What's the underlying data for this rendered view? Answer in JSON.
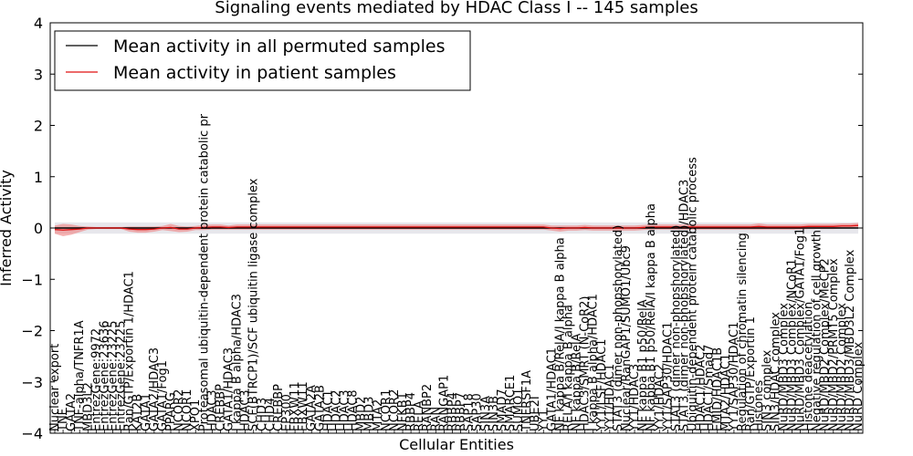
{
  "chart_data": {
    "type": "line",
    "title": "Signaling events mediated by HDAC Class I -- 145 samples",
    "xlabel": "Cellular Entities",
    "ylabel": "Inferred Activity",
    "ylim": [
      -4,
      4
    ],
    "yticks": [
      -4,
      -3,
      -2,
      -1,
      0,
      1,
      2,
      3,
      4
    ],
    "grid": false,
    "legend_position": "top-left",
    "colors": {
      "permuted": "#000000",
      "patient": "#e01010",
      "band": "#f08080",
      "band_grey": "#b9b9c8"
    },
    "categories": [
      "Nuclear export",
      "TNF",
      "GATA2",
      "TNF-alpha/TNFR1A",
      "MBD3L2",
      "EntrezGene:9972",
      "EntrezGene:23636",
      "EntrezGene:23225",
      "EntrezGene:23225",
      "Ran/GTP/Exportin 1/HDAC1",
      "KAT2B",
      "GATA1",
      "GATA2/HDAC3",
      "GATA1/Fog1",
      "PPARG",
      "NCOR2",
      "NCOR1",
      "XPO1",
      "Proteasomal ubiquitin-dependent protein catabolic pr",
      "HDAC3",
      "CREBBP",
      "GATA1/HDAC3",
      "I kappa B alpha/HDAC3",
      "HDAC3",
      "SCF(BTRCP1)/SCF ubiquitin ligase complex",
      "CHD3",
      "CHD4",
      "CREBBP",
      "EP300",
      "FBXW11",
      "FBXW11",
      "GATA2A",
      "GATA2B",
      "HDAC1",
      "HDAC2",
      "HDAC3",
      "HDAC8",
      "MBD2",
      "MBD3",
      "MTA2",
      "NCOR1",
      "NCOR2",
      "NFKB1",
      "RBBP4",
      "RELA",
      "RANBP2",
      "RAN",
      "RANGAP1",
      "RBBP4",
      "RBBP7",
      "SAP18",
      "SAP30",
      "SIN3A",
      "SIN3B",
      "SMAD7",
      "SMARCE1",
      "SUMO1",
      "TNFRSF1A",
      "UBE2I",
      "YY1",
      "GATA1/HDAC1",
      "NF kappa B/RelA/I kappa B alpha",
      "RELA/I kappa B alpha",
      "NF kappa B/RelA",
      "HDAC3/SMRT (N-CoR2)",
      "I kappa B alpha/HDAC1",
      "YY1/LSF/HDAC1",
      "YY1/HDAC1",
      "STAT3 (dimer non-phopshorylated)",
      "Nuclear/RanGAP1/SUMO1/Ubc9",
      "YY1/HDAC3",
      "NF kappa B1 p50/RelA",
      "NF kappa B1 p50/RelA/I kappa B alpha",
      "YY1/HDAC2",
      "YY1/SAP30/HDAC1",
      "STAT3 (dimer non-phopshorylated)",
      "STAT3 (dimer non-phopshorylated)/HDAC3",
      "Ubiquitin-dependent protein catabolic process",
      "HDAC1/HDAC2",
      "HDAC1/Smad7",
      "EMID/HDAC1B",
      "MTA2/HDAC1",
      "YY1/SAP30/HDAC1",
      "Regulation of chromatin silencing",
      "Ran/GTP/Exportin 1",
      "Histones",
      "SIN3 complex",
      "SIN3/HDAC complex",
      "NuRD/MBD3 Complex",
      "NuRD/MBD3 Complex/NCoR1",
      "NuRD/MBD3 Complex/GATA1/Fog1",
      "Histone deacetylation",
      "Negative regulation of cell growth",
      "NuRD/MBD2 Complex/MeCP2",
      "NuRD/MBD2/PRMT5 Complex",
      "NuRD/MBD2 Complex",
      "NuRD/MBD3/MBD3L2 Complex",
      "NuRD Complex"
    ],
    "series": [
      {
        "name": "Mean activity in all permuted samples",
        "values": [
          0.0,
          0.0,
          0.0,
          0.0,
          0.0,
          0.0,
          0.0,
          0.0,
          0.0,
          0.0,
          0.0,
          0.0,
          0.0,
          0.0,
          0.0,
          0.0,
          0.0,
          0.0,
          0.0,
          0.0,
          0.0,
          0.0,
          0.0,
          0.0,
          0.0,
          0.0,
          0.0,
          0.0,
          0.0,
          0.0,
          0.0,
          0.0,
          0.0,
          0.0,
          0.0,
          0.0,
          0.0,
          0.0,
          0.0,
          0.0,
          0.0,
          0.0,
          0.0,
          0.0,
          0.0,
          0.0,
          0.0,
          0.0,
          0.0,
          0.0,
          0.0,
          0.0,
          0.0,
          0.0,
          0.0,
          0.0,
          0.0,
          0.0,
          0.0,
          0.0,
          0.0,
          0.0,
          0.0,
          0.0,
          0.0,
          0.0,
          0.0,
          0.0,
          0.0,
          0.0,
          0.0,
          0.0,
          0.0,
          0.0,
          0.0,
          0.0,
          0.0,
          0.0,
          0.0,
          0.0,
          0.0,
          0.0,
          0.0,
          0.0,
          0.0,
          0.0,
          0.0,
          0.0,
          0.0,
          0.0,
          0.0,
          0.0,
          0.0,
          0.0,
          0.0,
          0.0,
          0.0,
          0.0
        ]
      },
      {
        "name": "Mean activity in patient samples",
        "values": [
          -0.03,
          -0.04,
          -0.03,
          -0.02,
          0.0,
          0.0,
          0.0,
          0.0,
          0.0,
          -0.02,
          -0.03,
          -0.03,
          -0.02,
          0.0,
          0.01,
          -0.02,
          -0.02,
          0.0,
          0.01,
          0.02,
          0.02,
          0.01,
          0.02,
          0.02,
          0.02,
          0.02,
          0.02,
          0.02,
          0.02,
          0.02,
          0.02,
          0.02,
          0.02,
          0.02,
          0.02,
          0.02,
          0.02,
          0.02,
          0.02,
          0.02,
          0.02,
          0.02,
          0.02,
          0.02,
          0.02,
          0.02,
          0.02,
          0.02,
          0.02,
          0.02,
          0.02,
          0.02,
          0.02,
          0.02,
          0.02,
          0.02,
          0.02,
          0.02,
          0.02,
          0.02,
          0.0,
          -0.01,
          0.0,
          0.0,
          0.01,
          0.0,
          0.0,
          0.0,
          0.0,
          0.0,
          0.0,
          0.01,
          0.02,
          0.02,
          0.02,
          0.02,
          0.02,
          0.02,
          0.02,
          0.02,
          0.02,
          0.02,
          0.02,
          0.02,
          0.02,
          0.03,
          0.02,
          0.02,
          0.02,
          0.02,
          0.02,
          0.03,
          0.03,
          0.03,
          0.03,
          0.04,
          0.04,
          0.05
        ]
      }
    ],
    "patient_band": [
      0.08,
      0.12,
      0.1,
      0.06,
      0.03,
      0.02,
      0.02,
      0.02,
      0.02,
      0.05,
      0.06,
      0.06,
      0.05,
      0.04,
      0.07,
      0.06,
      0.05,
      0.04,
      0.05,
      0.05,
      0.05,
      0.04,
      0.05,
      0.05,
      0.05,
      0.05,
      0.05,
      0.05,
      0.05,
      0.05,
      0.05,
      0.05,
      0.05,
      0.05,
      0.05,
      0.05,
      0.05,
      0.05,
      0.05,
      0.05,
      0.05,
      0.05,
      0.05,
      0.05,
      0.05,
      0.05,
      0.05,
      0.05,
      0.05,
      0.05,
      0.05,
      0.05,
      0.05,
      0.05,
      0.05,
      0.05,
      0.05,
      0.05,
      0.05,
      0.05,
      0.05,
      0.06,
      0.05,
      0.05,
      0.05,
      0.05,
      0.05,
      0.05,
      0.05,
      0.05,
      0.05,
      0.05,
      0.05,
      0.05,
      0.05,
      0.05,
      0.05,
      0.05,
      0.05,
      0.05,
      0.05,
      0.05,
      0.05,
      0.05,
      0.05,
      0.06,
      0.05,
      0.05,
      0.05,
      0.05,
      0.05,
      0.05,
      0.05,
      0.05,
      0.05,
      0.05,
      0.05,
      0.05
    ],
    "permuted_band": 0.11
  }
}
